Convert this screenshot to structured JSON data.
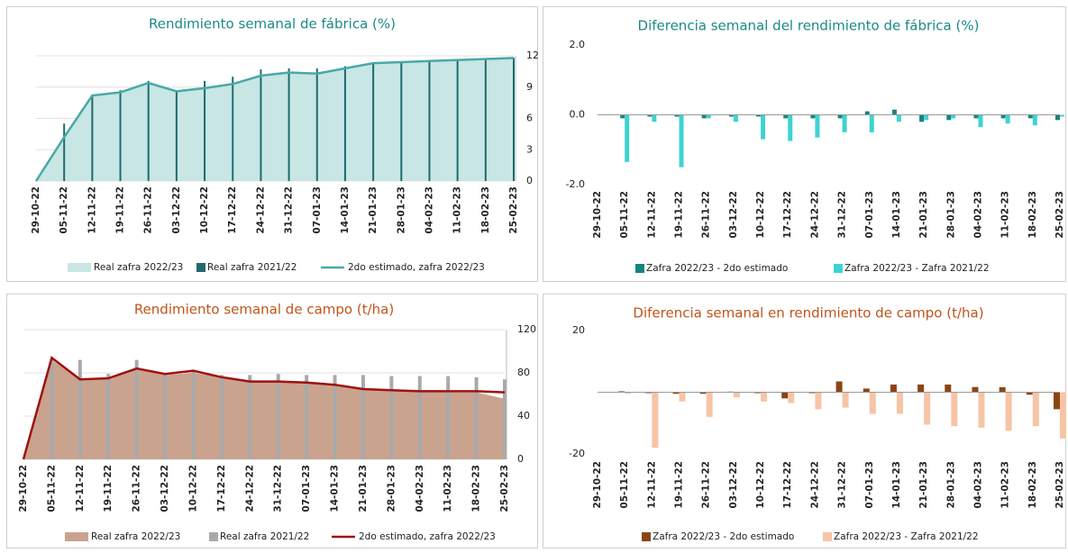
{
  "chart_data": [
    {
      "type": "combo",
      "title": "Rendimiento semanal de fábrica (%)",
      "y_axis_side": "right",
      "grid": true,
      "categories": [
        "29-10-22",
        "05-11-22",
        "12-11-22",
        "19-11-22",
        "26-11-22",
        "03-12-22",
        "10-12-22",
        "17-12-22",
        "24-12-22",
        "31-12-22",
        "07-01-23",
        "14-01-23",
        "21-01-23",
        "28-01-23",
        "04-02-23",
        "11-02-23",
        "18-02-23",
        "25-02-23"
      ],
      "ylim": [
        0,
        12
      ],
      "yticks": [
        0,
        3,
        6,
        9,
        12
      ],
      "series": [
        {
          "name": "Real zafra 2022/23",
          "type": "area",
          "color": "#c7e6e4",
          "values": [
            0,
            4.3,
            8.2,
            8.5,
            9.5,
            8.7,
            9.0,
            9.4,
            10.2,
            10.5,
            10.4,
            10.9,
            11.3,
            11.4,
            11.5,
            11.6,
            11.6,
            11.8
          ]
        },
        {
          "name": "Real zafra 2021/22",
          "type": "bar",
          "color": "#1e6b6e",
          "values": [
            null,
            5.5,
            8.3,
            8.7,
            9.6,
            8.7,
            9.6,
            10.0,
            10.7,
            10.8,
            10.8,
            11.0,
            11.3,
            11.4,
            11.5,
            11.6,
            11.7,
            11.8
          ]
        },
        {
          "name": "2do estimado, zafra 2022/23",
          "type": "line",
          "color": "#4aa8a8",
          "values": [
            0,
            4.2,
            8.2,
            8.5,
            9.4,
            8.6,
            8.9,
            9.3,
            10.1,
            10.4,
            10.3,
            10.8,
            11.3,
            11.4,
            11.5,
            11.6,
            11.7,
            11.8
          ]
        }
      ]
    },
    {
      "type": "combo",
      "title": "Diferencia semanal del rendimiento de fábrica (%)",
      "y_axis_side": "left",
      "grid": false,
      "categories": [
        "29-10-22",
        "05-11-22",
        "12-11-22",
        "19-11-22",
        "26-11-22",
        "03-12-22",
        "10-12-22",
        "17-12-22",
        "24-12-22",
        "31-12-22",
        "07-01-23",
        "14-01-23",
        "21-01-23",
        "28-01-23",
        "04-02-23",
        "11-02-23",
        "18-02-23",
        "25-02-23"
      ],
      "ylim": [
        -2,
        2
      ],
      "yticks": [
        {
          "value": -2,
          "label": "-2.0"
        },
        {
          "value": 0,
          "label": "0.0"
        },
        {
          "value": 2,
          "label": "2.0"
        }
      ],
      "series": [
        {
          "name": "Zafra 2022/23 - 2do estimado",
          "type": "bar",
          "color": "#16857f",
          "values": [
            null,
            -0.1,
            -0.05,
            -0.05,
            -0.1,
            -0.05,
            -0.05,
            -0.1,
            -0.1,
            -0.1,
            0.1,
            0.15,
            -0.2,
            -0.15,
            -0.1,
            -0.1,
            -0.1,
            -0.15
          ]
        },
        {
          "name": "Zafra 2022/23 - Zafra 2021/22",
          "type": "bar",
          "color": "#3dd3d3",
          "values": [
            null,
            -1.35,
            -0.2,
            -1.5,
            -0.1,
            -0.2,
            -0.7,
            -0.75,
            -0.65,
            -0.5,
            -0.5,
            -0.2,
            -0.15,
            -0.1,
            -0.35,
            -0.25,
            -0.3,
            -0.05
          ]
        }
      ]
    },
    {
      "type": "combo",
      "title": "Rendimiento semanal de campo (t/ha)",
      "y_axis_side": "right",
      "grid": true,
      "categories": [
        "29-10-22",
        "05-11-22",
        "12-11-22",
        "19-11-22",
        "26-11-22",
        "03-12-22",
        "10-12-22",
        "17-12-22",
        "24-12-22",
        "31-12-22",
        "07-01-23",
        "14-01-23",
        "21-01-23",
        "28-01-23",
        "04-02-23",
        "11-02-23",
        "18-02-23",
        "25-02-23"
      ],
      "ylim": [
        0,
        120
      ],
      "yticks": [
        0,
        40,
        80,
        120
      ],
      "series": [
        {
          "name": "Real zafra 2022/23",
          "type": "area",
          "color": "#c9a38e",
          "values": [
            0,
            92,
            74,
            76,
            83,
            78,
            80,
            76,
            72,
            72,
            71,
            69,
            66,
            64,
            63,
            62,
            62,
            56
          ]
        },
        {
          "name": "Real zafra 2021/22",
          "type": "bar",
          "color": "#a9a9a9",
          "values": [
            null,
            92,
            92,
            79,
            92,
            79,
            83,
            78,
            78,
            79,
            78,
            78,
            78,
            77,
            77,
            77,
            76,
            74
          ]
        },
        {
          "name": "2do estimado, zafra 2022/23",
          "type": "line",
          "color": "#a01010",
          "values": [
            0,
            94,
            74,
            75,
            84,
            79,
            82,
            76,
            72,
            72,
            71,
            69,
            65,
            64,
            63,
            63,
            63,
            62
          ]
        }
      ]
    },
    {
      "type": "combo",
      "title": "Diferencia semanal en rendimiento de campo (t/ha)",
      "y_axis_side": "left",
      "grid": false,
      "categories": [
        "29-10-22",
        "05-11-22",
        "12-11-22",
        "19-11-22",
        "26-11-22",
        "03-12-22",
        "10-12-22",
        "17-12-22",
        "24-12-22",
        "31-12-22",
        "07-01-23",
        "14-01-23",
        "21-01-23",
        "28-01-23",
        "04-02-23",
        "11-02-23",
        "18-02-23",
        "25-02-23"
      ],
      "ylim": [
        -20,
        20
      ],
      "yticks": [
        -20,
        20
      ],
      "series": [
        {
          "name": "Zafra 2022/23 - 2do estimado",
          "type": "bar",
          "color": "#8b4513",
          "values": [
            null,
            0.3,
            -0.3,
            -0.5,
            -0.5,
            0.2,
            -0.3,
            -2,
            -0.3,
            3.5,
            1.2,
            2.5,
            2.5,
            2.5,
            1.7,
            1.6,
            -0.8,
            -5.5
          ]
        },
        {
          "name": "Zafra 2022/23 - Zafra 2021/22",
          "type": "bar",
          "color": "#f7c4a5",
          "values": [
            null,
            -0.5,
            -18,
            -3,
            -8,
            -1.7,
            -3,
            -3.5,
            -5.5,
            -5,
            -7,
            -7,
            -10.5,
            -11,
            -11.5,
            -12.5,
            -11,
            -15
          ]
        }
      ]
    }
  ]
}
